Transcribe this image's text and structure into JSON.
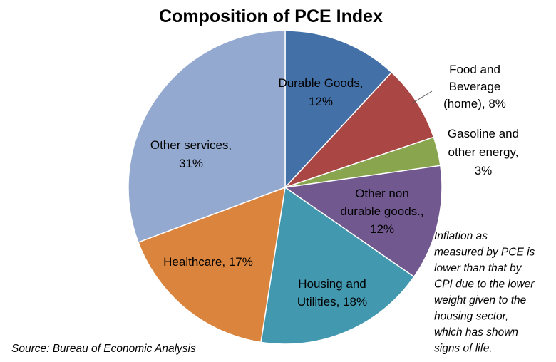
{
  "chart_data": {
    "type": "pie",
    "title": "Composition of PCE Index",
    "start_angle_deg": 90,
    "direction": "clockwise",
    "slices": [
      {
        "label": [
          "Durable Goods,",
          "12%"
        ],
        "value": 12,
        "color": "#4470A8"
      },
      {
        "label": [
          "Food and",
          "Beverage",
          "(home), 8%"
        ],
        "value": 8,
        "color": "#AA4643"
      },
      {
        "label": [
          "Gasoline and",
          "other energy,",
          "3%"
        ],
        "value": 3,
        "color": "#89A54E"
      },
      {
        "label": [
          "Other non",
          "durable goods.,",
          "12%"
        ],
        "value": 12,
        "color": "#71588F"
      },
      {
        "label": [
          "Housing and",
          "Utilities, 18%"
        ],
        "value": 18,
        "color": "#4198AF"
      },
      {
        "label": [
          "Healthcare, 17%"
        ],
        "value": 17,
        "color": "#DB843D"
      },
      {
        "label": [
          "Other services,",
          "31%"
        ],
        "value": 31,
        "color": "#93A9CF"
      }
    ],
    "annotation": [
      "Inflation as",
      "measured by PCE is",
      "lower than that by",
      "CPI due to the lower",
      "weight given to the",
      "housing sector,",
      "which has shown",
      "signs of life."
    ],
    "source": "Source: Bureau of Economic Analysis"
  }
}
